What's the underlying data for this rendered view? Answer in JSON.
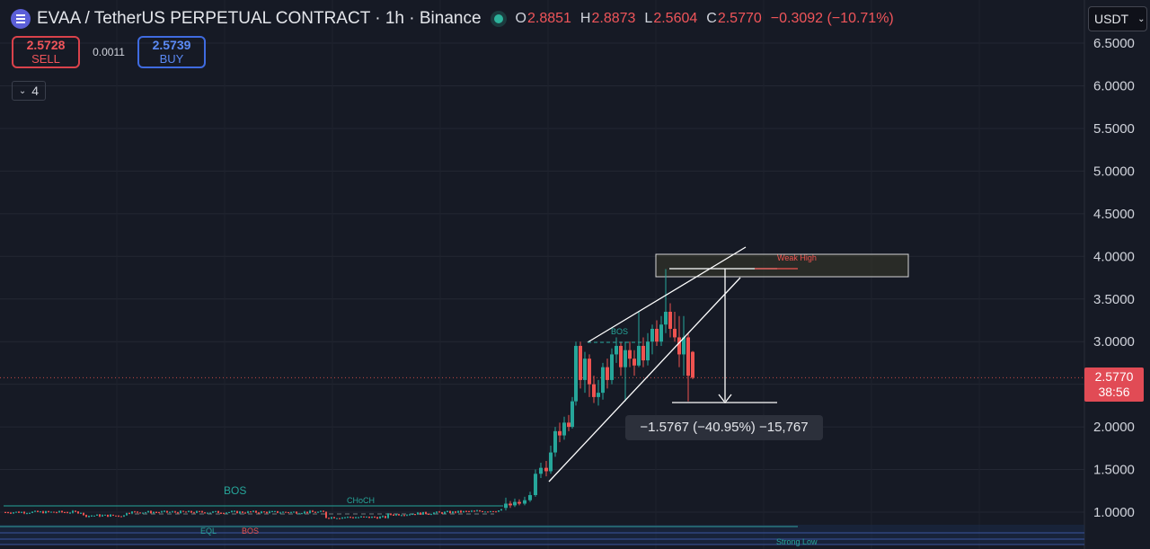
{
  "header": {
    "title": "EVAA / TetherUS PERPETUAL CONTRACT · 1h · Binance",
    "ohlc": [
      {
        "label": "O",
        "value": "2.8851"
      },
      {
        "label": "H",
        "value": "2.8873"
      },
      {
        "label": "L",
        "value": "2.5604"
      },
      {
        "label": "C",
        "value": "2.5770"
      }
    ],
    "change": "−0.3092 (−10.71%)"
  },
  "trade": {
    "sell_price": "2.5728",
    "sell_label": "SELL",
    "spread": "0.0011",
    "buy_price": "2.5739",
    "buy_label": "BUY"
  },
  "indicators_count": "4",
  "currency": "USDT",
  "price_axis": [
    "6.5000",
    "6.0000",
    "5.5000",
    "5.0000",
    "4.5000",
    "4.0000",
    "3.5000",
    "3.0000",
    "2.0000",
    "1.5000",
    "1.0000"
  ],
  "current_price": {
    "value": "2.5770",
    "countdown": "38:56"
  },
  "annotations": {
    "weak_high": "Weak High",
    "bos_top": "BOS",
    "bos_left": "BOS",
    "choch": "CHoCH",
    "eql": "EQL",
    "bos_bottom": "BOS",
    "strong_low": "Strong Low"
  },
  "measure": "−1.5767 (−40.95%) −15,767",
  "colors": {
    "background": "#161a25",
    "up": "#26a69a",
    "down": "#ef5350",
    "accent": "#2962ff"
  },
  "chart_data": {
    "type": "candlestick",
    "symbol": "EVAA / TetherUS PERPETUAL CONTRACT",
    "timeframe": "1h",
    "ylim": [
      0.75,
      6.75
    ],
    "yticks": [
      1.0,
      1.5,
      2.0,
      2.5,
      3.0,
      3.5,
      4.0,
      4.5,
      5.0,
      5.5,
      6.0,
      6.5
    ],
    "last_price": 2.577,
    "grid": true
  }
}
